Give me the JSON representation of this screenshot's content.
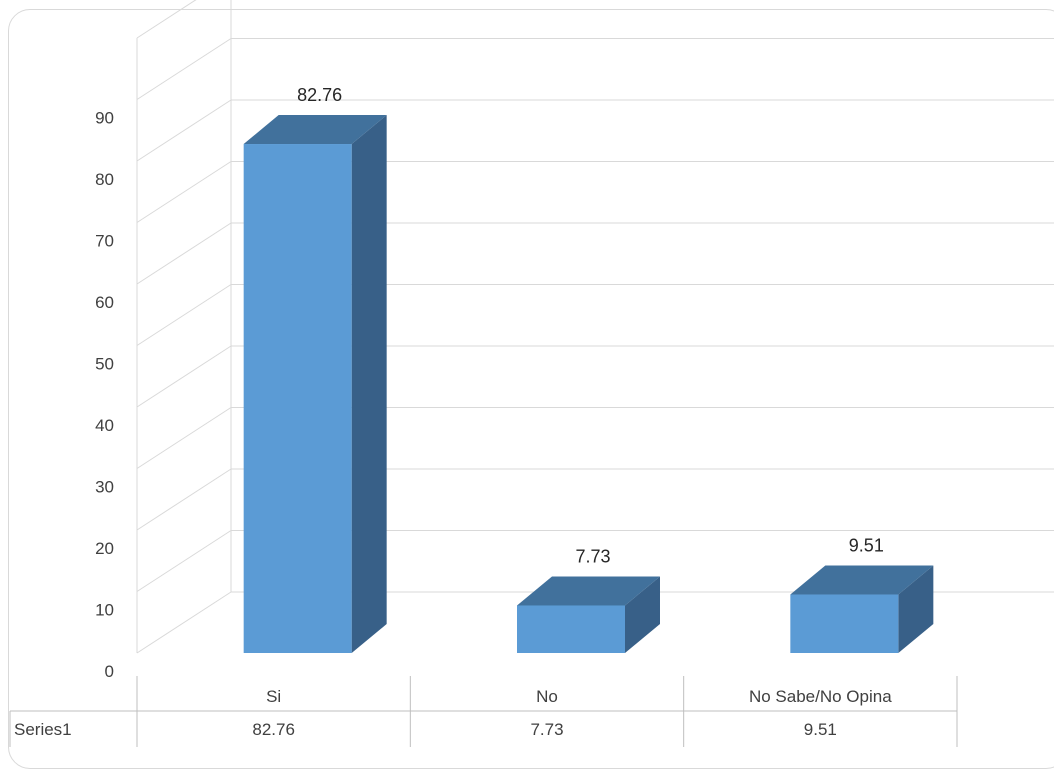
{
  "chart_data": {
    "type": "bar",
    "style": "3d-column",
    "categories": [
      "Si",
      "No",
      "No Sabe/No Opina"
    ],
    "series": [
      {
        "name": "Series1",
        "values": [
          82.76,
          7.73,
          9.51
        ]
      }
    ],
    "ylim": [
      0,
      90
    ],
    "yticks": [
      0,
      10,
      20,
      30,
      40,
      50,
      60,
      70,
      80,
      90
    ],
    "grid": true,
    "data_table": true,
    "colors": {
      "front": "#5b9bd5",
      "top": "#41719c",
      "side": "#386088",
      "grid": "#d9d9d9",
      "axis": "#bfbfbf"
    }
  }
}
